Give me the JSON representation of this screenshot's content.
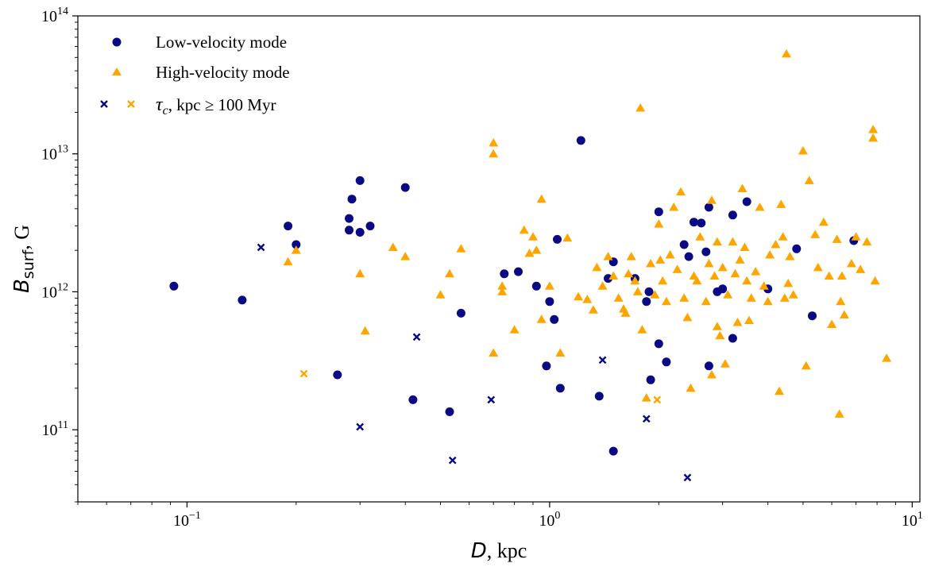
{
  "chart_data": {
    "type": "scatter",
    "x_scale": "log",
    "y_scale": "log",
    "xlim": [
      0.05,
      10.5
    ],
    "ylim": [
      30000000000.0,
      100000000000000.0
    ],
    "xlabel": {
      "var": "D",
      "unit": ", kpc"
    },
    "ylabel": {
      "var": "B",
      "sub": "surf",
      "unit": ", G"
    },
    "x_ticks": [
      {
        "base": "10",
        "exp": "−1",
        "value": 0.1
      },
      {
        "base": "10",
        "exp": "0",
        "value": 1
      },
      {
        "base": "10",
        "exp": "1",
        "value": 10
      }
    ],
    "y_ticks": [
      {
        "base": "10",
        "exp": "11",
        "value": 100000000000.0
      },
      {
        "base": "10",
        "exp": "12",
        "value": 1000000000000.0
      },
      {
        "base": "10",
        "exp": "13",
        "value": 10000000000000.0
      },
      {
        "base": "10",
        "exp": "14",
        "value": 100000000000000.0
      }
    ],
    "grid": false,
    "legend_position": "top-left",
    "colors": {
      "low": "#0a0a85",
      "high": "#ffa500"
    },
    "legend": [
      {
        "label": "Low-velocity mode",
        "marker": "circle"
      },
      {
        "label": "High-velocity mode",
        "marker": "triangle"
      },
      {
        "label_var": "τ",
        "label_sub": "c",
        "label_rest": ", kpc ≥ 100 Myr",
        "marker": "x"
      }
    ],
    "series": [
      {
        "name": "Low-velocity mode",
        "marker": "circle",
        "points": [
          [
            0.092,
            1100000000000.0
          ],
          [
            0.142,
            870000000000.0
          ],
          [
            0.19,
            3000000000000.0
          ],
          [
            0.2,
            2200000000000.0
          ],
          [
            0.28,
            3400000000000.0
          ],
          [
            0.28,
            2800000000000.0
          ],
          [
            0.285,
            4700000000000.0
          ],
          [
            0.3,
            6400000000000.0
          ],
          [
            0.3,
            2700000000000.0
          ],
          [
            0.32,
            3000000000000.0
          ],
          [
            0.4,
            5700000000000.0
          ],
          [
            0.42,
            165000000000.0
          ],
          [
            0.26,
            250000000000.0
          ],
          [
            0.53,
            135000000000.0
          ],
          [
            0.57,
            700000000000.0
          ],
          [
            0.75,
            1350000000000.0
          ],
          [
            0.82,
            1400000000000.0
          ],
          [
            0.92,
            1100000000000.0
          ],
          [
            0.98,
            290000000000.0
          ],
          [
            1.0,
            850000000000.0
          ],
          [
            1.03,
            630000000000.0
          ],
          [
            1.05,
            2400000000000.0
          ],
          [
            1.07,
            200000000000.0
          ],
          [
            1.22,
            12500000000000.0
          ],
          [
            1.37,
            175000000000.0
          ],
          [
            1.45,
            1250000000000.0
          ],
          [
            1.5,
            1650000000000.0
          ],
          [
            1.5,
            70000000000.0
          ],
          [
            1.72,
            1250000000000.0
          ],
          [
            1.85,
            850000000000.0
          ],
          [
            1.88,
            1000000000000.0
          ],
          [
            1.9,
            230000000000.0
          ],
          [
            2.0,
            3800000000000.0
          ],
          [
            2.0,
            420000000000.0
          ],
          [
            2.1,
            310000000000.0
          ],
          [
            2.35,
            2200000000000.0
          ],
          [
            2.42,
            1800000000000.0
          ],
          [
            2.5,
            3200000000000.0
          ],
          [
            2.62,
            3150000000000.0
          ],
          [
            2.7,
            1950000000000.0
          ],
          [
            2.75,
            4100000000000.0
          ],
          [
            2.75,
            290000000000.0
          ],
          [
            2.9,
            1000000000000.0
          ],
          [
            3.0,
            1050000000000.0
          ],
          [
            3.2,
            3600000000000.0
          ],
          [
            3.2,
            460000000000.0
          ],
          [
            3.5,
            4500000000000.0
          ],
          [
            4.0,
            1050000000000.0
          ],
          [
            4.8,
            2050000000000.0
          ],
          [
            5.3,
            670000000000.0
          ],
          [
            6.9,
            2350000000000.0
          ]
        ]
      },
      {
        "name": "High-velocity mode",
        "marker": "triangle",
        "points": [
          [
            0.19,
            1650000000000.0
          ],
          [
            0.2,
            2000000000000.0
          ],
          [
            0.3,
            1350000000000.0
          ],
          [
            0.31,
            520000000000.0
          ],
          [
            0.37,
            2100000000000.0
          ],
          [
            0.4,
            1800000000000.0
          ],
          [
            0.5,
            950000000000.0
          ],
          [
            0.53,
            1350000000000.0
          ],
          [
            0.57,
            2050000000000.0
          ],
          [
            0.7,
            12000000000000.0
          ],
          [
            0.7,
            10000000000000.0
          ],
          [
            0.7,
            360000000000.0
          ],
          [
            0.74,
            1000000000000.0
          ],
          [
            0.74,
            1100000000000.0
          ],
          [
            0.8,
            530000000000.0
          ],
          [
            0.85,
            2800000000000.0
          ],
          [
            0.88,
            1900000000000.0
          ],
          [
            0.9,
            2500000000000.0
          ],
          [
            0.92,
            2000000000000.0
          ],
          [
            0.95,
            4700000000000.0
          ],
          [
            0.95,
            630000000000.0
          ],
          [
            1.0,
            1100000000000.0
          ],
          [
            1.07,
            360000000000.0
          ],
          [
            1.12,
            2450000000000.0
          ],
          [
            1.2,
            920000000000.0
          ],
          [
            1.27,
            880000000000.0
          ],
          [
            1.32,
            740000000000.0
          ],
          [
            1.35,
            1500000000000.0
          ],
          [
            1.4,
            1100000000000.0
          ],
          [
            1.45,
            1800000000000.0
          ],
          [
            1.5,
            1300000000000.0
          ],
          [
            1.55,
            900000000000.0
          ],
          [
            1.6,
            750000000000.0
          ],
          [
            1.62,
            700000000000.0
          ],
          [
            1.65,
            1350000000000.0
          ],
          [
            1.68,
            1800000000000.0
          ],
          [
            1.72,
            1200000000000.0
          ],
          [
            1.75,
            1000000000000.0
          ],
          [
            1.78,
            21500000000000.0
          ],
          [
            1.8,
            530000000000.0
          ],
          [
            1.85,
            170000000000.0
          ],
          [
            1.9,
            1600000000000.0
          ],
          [
            1.95,
            950000000000.0
          ],
          [
            2.0,
            3100000000000.0
          ],
          [
            2.02,
            1700000000000.0
          ],
          [
            2.05,
            1200000000000.0
          ],
          [
            2.1,
            850000000000.0
          ],
          [
            2.15,
            1850000000000.0
          ],
          [
            2.2,
            4100000000000.0
          ],
          [
            2.25,
            1450000000000.0
          ],
          [
            2.3,
            5300000000000.0
          ],
          [
            2.35,
            900000000000.0
          ],
          [
            2.4,
            650000000000.0
          ],
          [
            2.45,
            200000000000.0
          ],
          [
            2.5,
            1300000000000.0
          ],
          [
            2.55,
            1200000000000.0
          ],
          [
            2.6,
            2500000000000.0
          ],
          [
            2.7,
            850000000000.0
          ],
          [
            2.75,
            1600000000000.0
          ],
          [
            2.8,
            4600000000000.0
          ],
          [
            2.8,
            250000000000.0
          ],
          [
            2.85,
            1300000000000.0
          ],
          [
            2.9,
            2300000000000.0
          ],
          [
            2.9,
            560000000000.0
          ],
          [
            2.95,
            480000000000.0
          ],
          [
            3.0,
            1500000000000.0
          ],
          [
            3.05,
            300000000000.0
          ],
          [
            3.1,
            950000000000.0
          ],
          [
            3.2,
            2300000000000.0
          ],
          [
            3.25,
            1350000000000.0
          ],
          [
            3.3,
            600000000000.0
          ],
          [
            3.35,
            1700000000000.0
          ],
          [
            3.4,
            5600000000000.0
          ],
          [
            3.45,
            2100000000000.0
          ],
          [
            3.5,
            1200000000000.0
          ],
          [
            3.55,
            620000000000.0
          ],
          [
            3.6,
            900000000000.0
          ],
          [
            3.7,
            1400000000000.0
          ],
          [
            3.8,
            4100000000000.0
          ],
          [
            3.9,
            1100000000000.0
          ],
          [
            4.0,
            850000000000.0
          ],
          [
            4.05,
            1850000000000.0
          ],
          [
            4.2,
            2200000000000.0
          ],
          [
            4.3,
            190000000000.0
          ],
          [
            4.35,
            4300000000000.0
          ],
          [
            4.4,
            2500000000000.0
          ],
          [
            4.45,
            900000000000.0
          ],
          [
            4.5,
            53000000000000.0
          ],
          [
            4.55,
            1150000000000.0
          ],
          [
            4.6,
            1800000000000.0
          ],
          [
            4.7,
            950000000000.0
          ],
          [
            5.0,
            10500000000000.0
          ],
          [
            5.1,
            290000000000.0
          ],
          [
            5.2,
            6400000000000.0
          ],
          [
            5.4,
            2600000000000.0
          ],
          [
            5.5,
            1500000000000.0
          ],
          [
            5.7,
            3200000000000.0
          ],
          [
            5.9,
            1300000000000.0
          ],
          [
            6.0,
            580000000000.0
          ],
          [
            6.2,
            2400000000000.0
          ],
          [
            6.3,
            130000000000.0
          ],
          [
            6.35,
            850000000000.0
          ],
          [
            6.4,
            1300000000000.0
          ],
          [
            6.5,
            680000000000.0
          ],
          [
            6.8,
            1600000000000.0
          ],
          [
            7.0,
            2500000000000.0
          ],
          [
            7.2,
            1450000000000.0
          ],
          [
            7.5,
            2300000000000.0
          ],
          [
            7.8,
            15000000000000.0
          ],
          [
            7.8,
            13000000000000.0
          ],
          [
            7.9,
            1200000000000.0
          ],
          [
            8.5,
            330000000000.0
          ]
        ]
      },
      {
        "name": "τc, kpc ≥ 100 Myr (low)",
        "marker": "x",
        "color_key": "low",
        "points": [
          [
            0.16,
            2100000000000.0
          ],
          [
            0.3,
            105000000000.0
          ],
          [
            0.43,
            470000000000.0
          ],
          [
            0.54,
            60000000000.0
          ],
          [
            0.69,
            165000000000.0
          ],
          [
            1.4,
            320000000000.0
          ],
          [
            1.85,
            120000000000.0
          ],
          [
            2.4,
            45000000000.0
          ]
        ]
      },
      {
        "name": "τc, kpc ≥ 100 Myr (high)",
        "marker": "x",
        "color_key": "high",
        "points": [
          [
            0.21,
            255000000000.0
          ],
          [
            1.98,
            165000000000.0
          ]
        ]
      }
    ]
  }
}
